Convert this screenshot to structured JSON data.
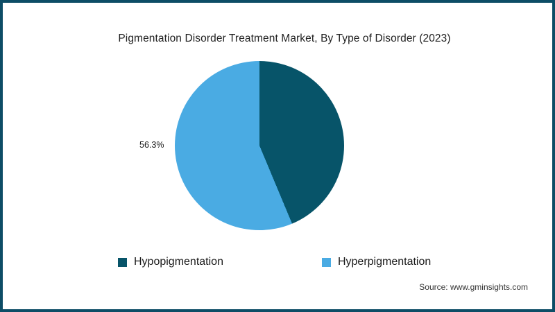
{
  "frame": {
    "border_color": "#0d4d66",
    "background_color": "#ffffff"
  },
  "chart_data": {
    "type": "pie",
    "title": "Pigmentation Disorder Treatment Market, By Type of Disorder (2023)",
    "slices": [
      {
        "label": "Hypopigmentation",
        "value": 43.7,
        "color": "#075469",
        "data_label": ""
      },
      {
        "label": "Hyperpigmentation",
        "value": 56.3,
        "color": "#4aabe3",
        "data_label": "56.3%"
      }
    ],
    "start_angle_deg": 0,
    "direction": "clockwise",
    "legend_position": "bottom",
    "source": "Source: www.gminsights.com"
  }
}
